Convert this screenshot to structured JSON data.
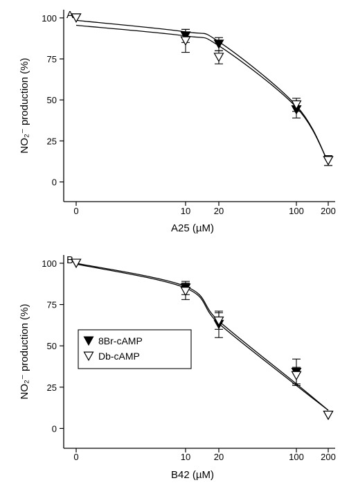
{
  "chart_data": [
    {
      "type": "scatter",
      "panel_label": "A",
      "title": "",
      "xlabel": "A25 (µM)",
      "ylabel": "NO₂⁻ production (%)",
      "x_tick_labels": [
        "0",
        "10",
        "20",
        "100",
        "200"
      ],
      "x_tick_values": [
        0,
        10,
        20,
        100,
        200
      ],
      "y_ticks": [
        0,
        25,
        50,
        75,
        100
      ],
      "ylim": [
        -12,
        105
      ],
      "legend": "none",
      "grid": false,
      "series": [
        {
          "name": "8Br-cAMP",
          "marker": "filled-down-triangle",
          "x": [
            0,
            10,
            20,
            100,
            200
          ],
          "y": [
            100,
            89,
            84,
            44,
            13
          ],
          "error": [
            0,
            4,
            4,
            5,
            3
          ],
          "fit": [
            98.5,
            91.5,
            85.5,
            46.5,
            12
          ]
        },
        {
          "name": "Db-cAMP",
          "marker": "open-down-triangle",
          "x": [
            0,
            10,
            20,
            100,
            200
          ],
          "y": [
            100,
            86,
            76,
            47,
            13
          ],
          "error": [
            0,
            7,
            4,
            4,
            3
          ],
          "fit": [
            95.5,
            89,
            83,
            45.5,
            12
          ]
        }
      ]
    },
    {
      "type": "scatter",
      "panel_label": "B",
      "title": "",
      "xlabel": "B42 (µM)",
      "ylabel": "NO₂⁻ production (%)",
      "x_tick_labels": [
        "0",
        "10",
        "20",
        "100",
        "200"
      ],
      "x_tick_values": [
        0,
        10,
        20,
        100,
        200
      ],
      "y_ticks": [
        0,
        25,
        50,
        75,
        100
      ],
      "ylim": [
        -12,
        105
      ],
      "legend": "left-middle",
      "grid": false,
      "series": [
        {
          "name": "8Br-cAMP",
          "marker": "filled-down-triangle",
          "x": [
            0,
            10,
            20,
            100,
            200
          ],
          "y": [
            100,
            85,
            63,
            34,
            8
          ],
          "error": [
            0,
            4,
            8,
            8,
            0
          ],
          "fit": [
            100,
            86,
            65,
            27,
            11
          ]
        },
        {
          "name": "Db-cAMP",
          "marker": "open-down-triangle",
          "x": [
            0,
            10,
            20,
            100,
            200
          ],
          "y": [
            100,
            83,
            65,
            32,
            8
          ],
          "error": [
            0,
            5,
            5,
            5,
            0
          ],
          "fit": [
            99.5,
            85,
            63.5,
            26,
            11
          ]
        }
      ]
    }
  ]
}
